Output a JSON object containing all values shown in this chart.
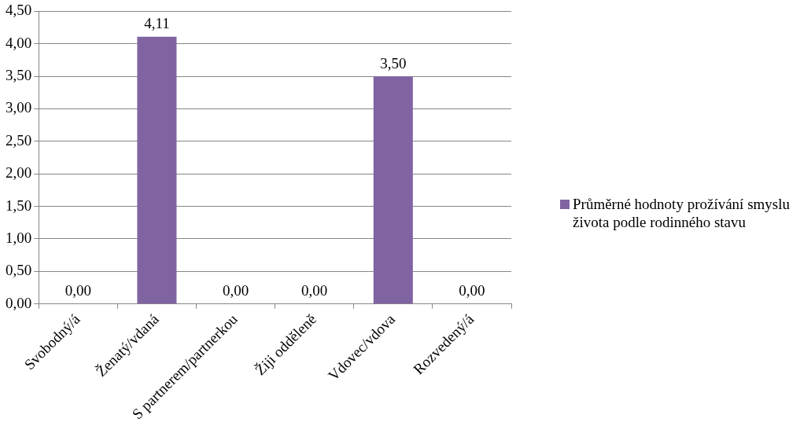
{
  "chart_data": {
    "type": "bar",
    "categories": [
      "Svobodný/á",
      "Ženatý/vdaná",
      "S partnerem/partnerkou",
      "Žiji odděleně",
      "Vdovec/vdova",
      "Rozvedený/á"
    ],
    "series": [
      {
        "name": "Průměrné hodnoty prožívání smyslu života podle rodinného stavu",
        "color": "#8064a2",
        "values": [
          0,
          4.11,
          0,
          0,
          3.5,
          0
        ],
        "value_labels": [
          "0,00",
          "4,11",
          "0,00",
          "0,00",
          "3,50",
          "0,00"
        ]
      }
    ],
    "ylim": [
      0,
      4.5
    ],
    "yticks": [
      {
        "value": 0,
        "label": "0,00"
      },
      {
        "value": 0.5,
        "label": "0,50"
      },
      {
        "value": 1,
        "label": "1,00"
      },
      {
        "value": 1.5,
        "label": "1,50"
      },
      {
        "value": 2,
        "label": "2,00"
      },
      {
        "value": 2.5,
        "label": "2,50"
      },
      {
        "value": 3,
        "label": "3,00"
      },
      {
        "value": 3.5,
        "label": "3,50"
      },
      {
        "value": 4,
        "label": "4,00"
      },
      {
        "value": 4.5,
        "label": "4,50"
      }
    ],
    "grid": "y",
    "legend": "right"
  }
}
